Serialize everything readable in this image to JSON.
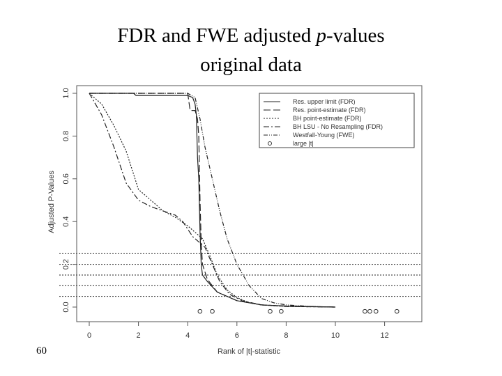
{
  "slide": {
    "title_line1_prefix": "FDR and FWE adjusted ",
    "title_line1_italic": "p",
    "title_line1_suffix": "-values",
    "title_line2": "original data",
    "page_number": "60"
  },
  "chart_data": {
    "type": "line",
    "xlabel": "Rank of |t|-statistic",
    "ylabel": "Adjusted P-Values",
    "xlim": [
      -0.4,
      13.6
    ],
    "ylim": [
      -0.05,
      1.03
    ],
    "x_ticks": [
      0,
      2,
      4,
      6,
      8,
      10,
      12
    ],
    "x_tick_labels": [
      "0",
      "2",
      "4",
      "6",
      "8",
      "10",
      "12"
    ],
    "y_ticks": [
      0.0,
      0.2,
      0.4,
      0.6,
      0.8,
      1.0
    ],
    "y_tick_labels": [
      "0.0",
      "0.2",
      "0.4",
      "0.6",
      "0.8",
      "1.0"
    ],
    "grid": false,
    "legend_position": "top-right",
    "reference_lines_y": [
      0.05,
      0.1,
      0.15,
      0.2,
      0.25
    ],
    "series": [
      {
        "name": "Res. upper limit (FDR)",
        "dash": "solid",
        "points": [
          [
            0,
            1.0
          ],
          [
            1.0,
            1.0
          ],
          [
            1.8,
            1.0
          ],
          [
            1.9,
            0.99
          ],
          [
            3.2,
            0.99
          ],
          [
            4.0,
            0.99
          ],
          [
            4.2,
            0.98
          ],
          [
            4.3,
            0.95
          ],
          [
            4.35,
            0.9
          ],
          [
            4.4,
            0.7
          ],
          [
            4.45,
            0.6
          ],
          [
            4.5,
            0.35
          ],
          [
            4.55,
            0.2
          ],
          [
            4.6,
            0.15
          ],
          [
            4.8,
            0.12
          ],
          [
            5.2,
            0.07
          ],
          [
            6.0,
            0.03
          ],
          [
            7.0,
            0.01
          ],
          [
            8.0,
            0.005
          ],
          [
            10.0,
            0.0
          ]
        ]
      },
      {
        "name": "Res. point-estimate (FDR)",
        "dash": "10,4",
        "points": [
          [
            0,
            1.0
          ],
          [
            2.0,
            1.0
          ],
          [
            4.0,
            1.0
          ],
          [
            4.1,
            0.92
          ],
          [
            4.3,
            0.92
          ],
          [
            4.4,
            0.88
          ],
          [
            4.45,
            0.8
          ],
          [
            4.5,
            0.5
          ],
          [
            4.55,
            0.3
          ],
          [
            4.6,
            0.2
          ],
          [
            4.8,
            0.13
          ],
          [
            5.2,
            0.07
          ],
          [
            6.0,
            0.03
          ],
          [
            7.0,
            0.01
          ],
          [
            8.0,
            0.005
          ],
          [
            10.0,
            0.0
          ]
        ]
      },
      {
        "name": "BH point-estimate (FDR)",
        "dash": "2,2",
        "points": [
          [
            0,
            1.0
          ],
          [
            0.5,
            0.95
          ],
          [
            1.0,
            0.85
          ],
          [
            1.5,
            0.73
          ],
          [
            2.0,
            0.55
          ],
          [
            2.5,
            0.5
          ],
          [
            3.0,
            0.45
          ],
          [
            3.5,
            0.42
          ],
          [
            4.0,
            0.38
          ],
          [
            4.3,
            0.35
          ],
          [
            4.6,
            0.32
          ],
          [
            4.9,
            0.24
          ],
          [
            5.2,
            0.15
          ],
          [
            5.6,
            0.08
          ],
          [
            6.0,
            0.045
          ],
          [
            6.5,
            0.02
          ],
          [
            7.0,
            0.01
          ],
          [
            8.0,
            0.003
          ],
          [
            10.0,
            0.0
          ]
        ]
      },
      {
        "name": "BH LSU - No Resampling (FDR)",
        "dash": "8,3,2,3",
        "points": [
          [
            0,
            1.0
          ],
          [
            0.5,
            0.9
          ],
          [
            1.0,
            0.75
          ],
          [
            1.5,
            0.58
          ],
          [
            2.0,
            0.5
          ],
          [
            2.5,
            0.47
          ],
          [
            3.0,
            0.45
          ],
          [
            3.5,
            0.43
          ],
          [
            3.8,
            0.4
          ],
          [
            4.2,
            0.33
          ],
          [
            4.5,
            0.3
          ],
          [
            4.7,
            0.28
          ],
          [
            5.0,
            0.2
          ],
          [
            5.3,
            0.12
          ],
          [
            5.7,
            0.06
          ],
          [
            6.2,
            0.03
          ],
          [
            7.0,
            0.01
          ],
          [
            8.0,
            0.003
          ],
          [
            10.0,
            0.0
          ]
        ]
      },
      {
        "name": "Westfall-Young (FWE)",
        "dash": "6,2,1,2,1,2",
        "points": [
          [
            0,
            1.0
          ],
          [
            4.0,
            1.0
          ],
          [
            4.3,
            0.98
          ],
          [
            4.5,
            0.88
          ],
          [
            4.7,
            0.75
          ],
          [
            5.0,
            0.6
          ],
          [
            5.3,
            0.45
          ],
          [
            5.6,
            0.32
          ],
          [
            6.0,
            0.2
          ],
          [
            6.5,
            0.1
          ],
          [
            7.0,
            0.04
          ],
          [
            7.5,
            0.02
          ],
          [
            8.0,
            0.01
          ],
          [
            9.0,
            0.003
          ],
          [
            10.0,
            0.0
          ]
        ]
      },
      {
        "name": "large |t|",
        "marker": "o",
        "points": [
          [
            4.5,
            -0.02
          ],
          [
            5.0,
            -0.02
          ],
          [
            7.35,
            -0.02
          ],
          [
            7.8,
            -0.02
          ],
          [
            11.2,
            -0.02
          ],
          [
            11.4,
            -0.02
          ],
          [
            11.65,
            -0.02
          ],
          [
            12.5,
            -0.02
          ]
        ]
      }
    ]
  }
}
